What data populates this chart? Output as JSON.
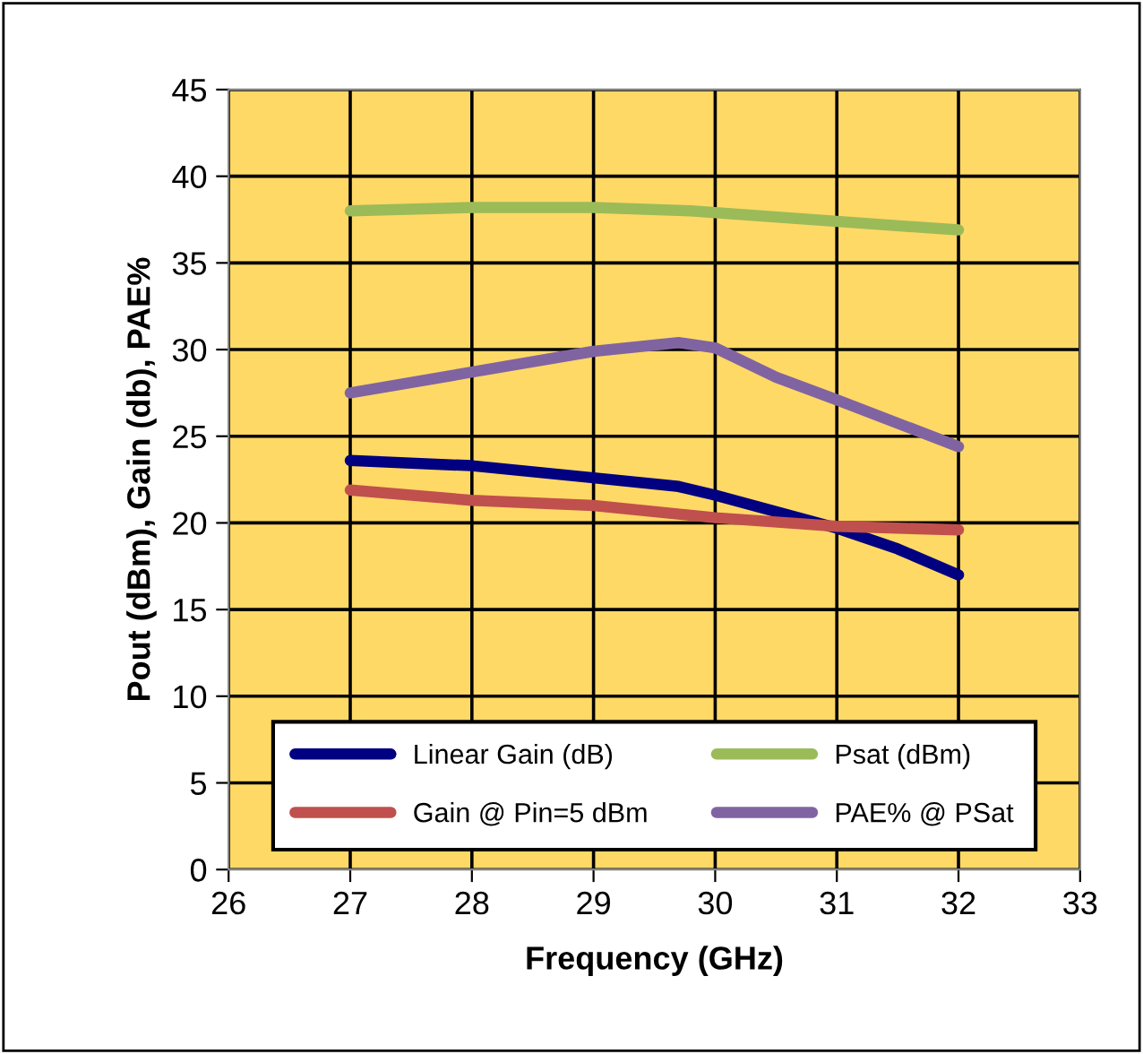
{
  "chart_data": {
    "type": "line",
    "xlabel": "Frequency (GHz)",
    "ylabel": "Pout (dBm), Gain (db), PAE%",
    "xlim": [
      26,
      33
    ],
    "xticks": [
      26,
      27,
      28,
      29,
      30,
      31,
      32,
      33
    ],
    "ylim": [
      0,
      45
    ],
    "yticks": [
      0,
      5,
      10,
      15,
      20,
      25,
      30,
      35,
      40,
      45
    ],
    "grid": true,
    "legend": "bottom",
    "marker": "none",
    "line_style": "solid",
    "series": [
      {
        "name": "Linear Gain (dB)",
        "color": "#000080",
        "x": [
          27,
          28,
          29,
          29.7,
          30,
          31,
          31.5,
          32
        ],
        "values": [
          23.6,
          23.3,
          22.6,
          22.1,
          21.6,
          19.7,
          18.5,
          17.0
        ]
      },
      {
        "name": "Gain @ Pin=5 dBm",
        "color": "#c0504d",
        "x": [
          27,
          28,
          29,
          30,
          31,
          32
        ],
        "values": [
          21.9,
          21.3,
          21.0,
          20.3,
          19.8,
          19.6
        ]
      },
      {
        "name": "Psat (dBm)",
        "color": "#9bbb59",
        "x": [
          27,
          28,
          29,
          29.8,
          30,
          31,
          32
        ],
        "values": [
          38.0,
          38.2,
          38.2,
          38.0,
          37.9,
          37.4,
          36.9
        ]
      },
      {
        "name": "PAE% @ PSat",
        "color": "#8064a2",
        "x": [
          27,
          28,
          29,
          29.7,
          30,
          30.5,
          31,
          32
        ],
        "values": [
          27.5,
          28.7,
          29.9,
          30.4,
          30.1,
          28.4,
          27.1,
          24.4
        ]
      }
    ]
  }
}
